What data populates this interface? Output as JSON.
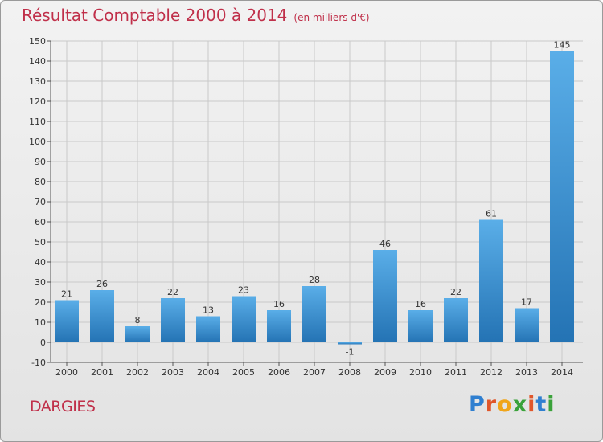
{
  "header": {
    "title": "Résultat Comptable 2000 à 2014",
    "unit": "(en milliers d'€)"
  },
  "footer": {
    "commune": "DARGIES",
    "logo_text": "Proxiti"
  },
  "colors": {
    "title": "#c0304a",
    "bar_top": "#5aaee8",
    "bar_bottom": "#2473b4",
    "logo": [
      "#2f7fd0",
      "#e0562a",
      "#f0a51a",
      "#3aa23a",
      "#e0562a",
      "#2f7fd0",
      "#3aa23a"
    ]
  },
  "chart_data": {
    "type": "bar",
    "title": "Résultat Comptable 2000 à 2014",
    "subtitle": "(en milliers d'€)",
    "categories": [
      "2000",
      "2001",
      "2002",
      "2003",
      "2004",
      "2005",
      "2006",
      "2007",
      "2008",
      "2009",
      "2010",
      "2011",
      "2012",
      "2013",
      "2014"
    ],
    "values": [
      21,
      26,
      8,
      22,
      13,
      23,
      16,
      28,
      -1,
      46,
      16,
      22,
      61,
      17,
      145
    ],
    "ylim": [
      -10,
      150
    ],
    "yticks": [
      -10,
      0,
      10,
      20,
      30,
      40,
      50,
      60,
      70,
      80,
      90,
      100,
      110,
      120,
      130,
      140,
      150
    ],
    "grid": true,
    "data_labels": true
  }
}
